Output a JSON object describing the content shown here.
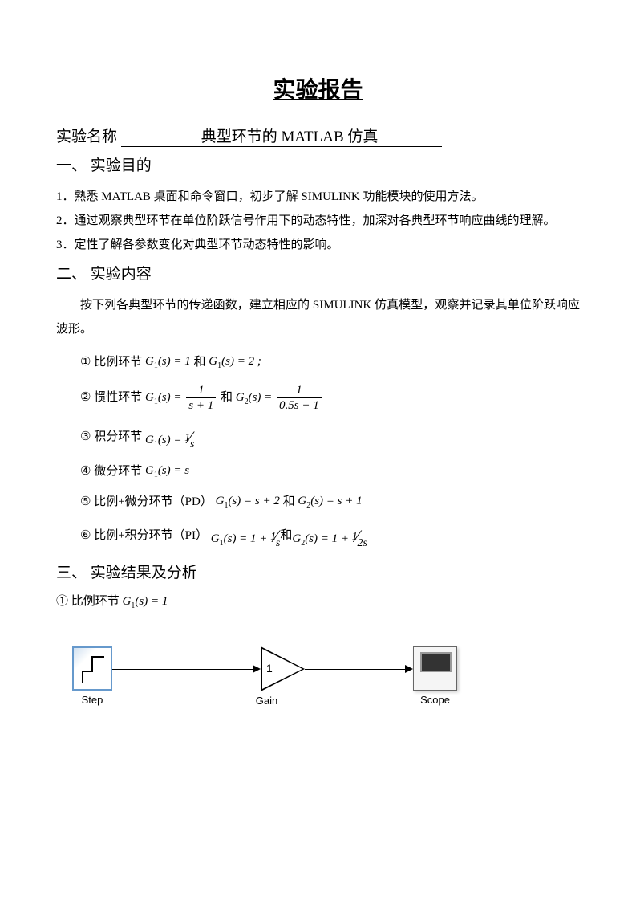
{
  "title": "实验报告",
  "experiment_label": "实验名称",
  "experiment_name": "典型环节的 MATLAB 仿真",
  "section1": {
    "header": "一、 实验目的",
    "items": [
      "1．熟悉 MATLAB 桌面和命令窗口，初步了解 SIMULINK 功能模块的使用方法。",
      "2．通过观察典型环节在单位阶跃信号作用下的动态特性，加深对各典型环节响应曲线的理解。",
      "3．定性了解各参数变化对典型环节动态特性的影响。"
    ]
  },
  "section2": {
    "header": "二、 实验内容",
    "intro": "按下列各典型环节的传递函数，建立相应的 SIMULINK 仿真模型，观察并记录其单位阶跃响应波形。",
    "items": [
      {
        "num": "①",
        "label": "比例环节",
        "eq1_lhs": "G",
        "eq1_sub": "1",
        "eq1_mid": "(s) = 1",
        "conj": "和",
        "eq2_lhs": "G",
        "eq2_sub": "1",
        "eq2_mid": "(s) = 2 ;"
      },
      {
        "num": "②",
        "label": "惯性环节",
        "frac1_num": "1",
        "frac1_den": "s + 1",
        "frac2_num": "1",
        "frac2_den": "0.5s + 1"
      },
      {
        "num": "③",
        "label": "积分环节",
        "diag_num": "1",
        "diag_den": "s"
      },
      {
        "num": "④",
        "label": "微分环节",
        "eq": "(s) = s"
      },
      {
        "num": "⑤",
        "label": "比例+微分环节（PD）",
        "eq1": "(s) = s + 2",
        "conj": "和",
        "eq2": "(s) = s + 1"
      },
      {
        "num": "⑥",
        "label": "比例+积分环节（PI）",
        "prefix1": "(s) = 1 + ",
        "diag1_num": "1",
        "diag1_den": "s",
        "conj": " 和 ",
        "prefix2": "(s) = 1 + ",
        "diag2_num": "1",
        "diag2_den": "2s"
      }
    ]
  },
  "section3": {
    "header": "三、 实验结果及分析",
    "item1": {
      "num": "①",
      "label": "比例环节",
      "eq": "(s) = 1"
    }
  },
  "simulink": {
    "step_label": "Step",
    "gain_label": "Gain",
    "gain_value": "1",
    "scope_label": "Scope",
    "block_border_color": "#6699cc",
    "wire_color": "#000000"
  }
}
